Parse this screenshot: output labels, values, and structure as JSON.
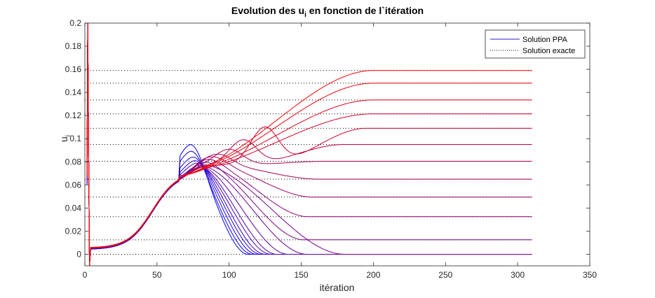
{
  "chart_data": {
    "type": "line",
    "title": {
      "main": "Evolution des u",
      "sub": "i",
      "rest": " en fonction de l`itération"
    },
    "xlabel": "itération",
    "ylabel": {
      "main": "u",
      "sub": "i"
    },
    "xlim": [
      0,
      350
    ],
    "ylim": [
      -0.01,
      0.2
    ],
    "x_ticks": [
      0,
      50,
      100,
      150,
      200,
      250,
      300,
      350
    ],
    "y_ticks": [
      0,
      0.02,
      0.04,
      0.06,
      0.08,
      0.1,
      0.12,
      0.14,
      0.16,
      0.18,
      0.2
    ],
    "x_tick_labels": [
      "0",
      "50",
      "100",
      "150",
      "200",
      "250",
      "300",
      "350"
    ],
    "y_tick_labels": [
      "0",
      "0.02",
      "0.04",
      "0.06",
      "0.08",
      "0.1",
      "0.12",
      "0.14",
      "0.16",
      "0.18",
      "0.2"
    ],
    "grid": false,
    "legend_position": "top-right",
    "legend": [
      {
        "label": "Solution PPA",
        "style": "solid",
        "color": "#1f1fcf"
      },
      {
        "label": "Solution exacte",
        "style": "dotted",
        "color": "#000000"
      }
    ],
    "color_from": "#0000ff",
    "color_to": "#ff0000",
    "x_end": 310,
    "exact_values": [
      0,
      0.0125,
      0.0325,
      0.0495,
      0.065,
      0.0805,
      0.095,
      0.109,
      0.1215,
      0.1335,
      0.148,
      0.159
    ],
    "series": [
      {
        "final": 0,
        "hump": 0.094,
        "t_peak": 72,
        "t_zero": 113
      },
      {
        "final": 0,
        "hump": 0.088,
        "t_peak": 72,
        "t_zero": 116
      },
      {
        "final": 0,
        "hump": 0.082,
        "t_peak": 73,
        "t_zero": 119
      },
      {
        "final": 0,
        "hump": 0.078,
        "t_peak": 74,
        "t_zero": 122
      },
      {
        "final": 0,
        "hump": 0.075,
        "t_peak": 75,
        "t_zero": 125
      },
      {
        "final": 0,
        "hump": 0.072,
        "t_peak": 76,
        "t_zero": 129
      },
      {
        "final": 0,
        "hump": 0.07,
        "t_peak": 77,
        "t_zero": 133
      },
      {
        "final": 0,
        "hump": 0.069,
        "t_peak": 78,
        "t_zero": 141
      },
      {
        "final": 0,
        "hump": 0.069,
        "t_peak": 79,
        "t_zero": 154
      },
      {
        "final": 0,
        "hump": 0.07,
        "t_peak": 80,
        "t_zero": 180
      },
      {
        "final": 0.0125,
        "hump": 0.072,
        "t_peak": 82
      },
      {
        "final": 0.0325,
        "hump": 0.074,
        "t_peak": 85
      },
      {
        "final": 0.0495,
        "hump": 0.076,
        "t_peak": 88
      },
      {
        "final": 0.065,
        "hump": 0.078,
        "t_peak": 92
      },
      {
        "final": 0.0805,
        "hump": 0.082,
        "t_peak": 100
      },
      {
        "final": 0.095,
        "hump": 0.09,
        "t_peak": 110
      },
      {
        "final": 0.109,
        "hump": 0.101,
        "t_peak": 125
      },
      {
        "final": 0.1215
      },
      {
        "final": 0.1335
      },
      {
        "final": 0.148
      },
      {
        "final": 0.159
      }
    ]
  }
}
